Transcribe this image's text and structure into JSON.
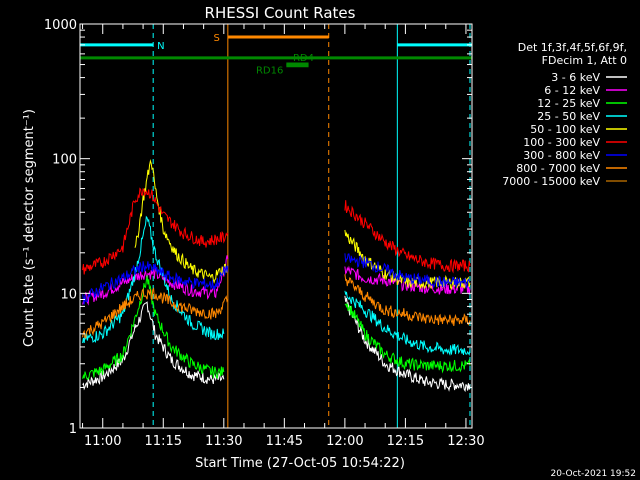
{
  "chart_data": {
    "type": "line",
    "title": "RHESSI Count Rates",
    "xlabel": "Start Time (27-Oct-05 10:54:22)",
    "ylabel": "Count Rate (s⁻¹ detector segment⁻¹)",
    "y_scale": "log",
    "ylim": [
      1,
      1000
    ],
    "xlim": [
      "10:54:22",
      "12:31:30"
    ],
    "x_ticks": [
      "11:00",
      "11:15",
      "11:30",
      "11:45",
      "12:00",
      "12:15",
      "12:30"
    ],
    "y_ticks": [
      "1",
      "10",
      "100",
      "1000"
    ],
    "grid": false,
    "legend_position": "right",
    "legend_header": [
      "Det 1f,3f,4f,5f,6f,9f,",
      "FDecim 1, Att 0"
    ],
    "series": [
      {
        "name": "3 - 6 keV",
        "color": "#ffffff",
        "points": [
          [
            "10:55",
            2.1
          ],
          [
            "11:00",
            2.4
          ],
          [
            "11:05",
            3.2
          ],
          [
            "11:08",
            5.5
          ],
          [
            "11:11",
            8.5
          ],
          [
            "11:13",
            5
          ],
          [
            "11:17",
            3.2
          ],
          [
            "11:22",
            2.5
          ],
          [
            "11:27",
            2.3
          ],
          [
            "11:30",
            2.3
          ],
          [
            "12:00",
            8.8
          ],
          [
            "12:05",
            4.5
          ],
          [
            "12:10",
            3
          ],
          [
            "12:15",
            2.5
          ],
          [
            "12:20",
            2.2
          ],
          [
            "12:25",
            2.1
          ],
          [
            "12:31",
            2.1
          ]
        ]
      },
      {
        "name": "6 - 12 keV",
        "color": "#ff00ff",
        "points": [
          [
            "10:55",
            9
          ],
          [
            "11:00",
            10
          ],
          [
            "11:05",
            12
          ],
          [
            "11:10",
            14
          ],
          [
            "11:13",
            14
          ],
          [
            "11:17",
            12
          ],
          [
            "11:22",
            10.5
          ],
          [
            "11:28",
            10
          ],
          [
            "11:31",
            18
          ],
          [
            "12:00",
            15
          ],
          [
            "12:05",
            13
          ],
          [
            "12:10",
            12.5
          ],
          [
            "12:15",
            11.5
          ],
          [
            "12:20",
            11
          ],
          [
            "12:25",
            10.8
          ],
          [
            "12:31",
            10.8
          ]
        ]
      },
      {
        "name": "12 - 25 keV",
        "color": "#00ff00",
        "points": [
          [
            "10:55",
            2.4
          ],
          [
            "11:00",
            2.7
          ],
          [
            "11:05",
            3.5
          ],
          [
            "11:08",
            6.5
          ],
          [
            "11:11",
            13
          ],
          [
            "11:13",
            7
          ],
          [
            "11:17",
            4
          ],
          [
            "11:22",
            3
          ],
          [
            "11:27",
            2.6
          ],
          [
            "11:30",
            2.6
          ],
          [
            "12:00",
            9
          ],
          [
            "12:05",
            5
          ],
          [
            "12:10",
            3.5
          ],
          [
            "12:15",
            3
          ],
          [
            "12:20",
            2.9
          ],
          [
            "12:25",
            2.9
          ],
          [
            "12:31",
            2.9
          ]
        ]
      },
      {
        "name": "25 - 50 keV",
        "color": "#00ffff",
        "points": [
          [
            "10:55",
            4.5
          ],
          [
            "11:00",
            5
          ],
          [
            "11:05",
            7
          ],
          [
            "11:08",
            14
          ],
          [
            "11:11",
            36
          ],
          [
            "11:13",
            20
          ],
          [
            "11:17",
            9
          ],
          [
            "11:22",
            6
          ],
          [
            "11:27",
            5
          ],
          [
            "11:30",
            5
          ],
          [
            "12:00",
            10
          ],
          [
            "12:05",
            7.5
          ],
          [
            "12:10",
            5.5
          ],
          [
            "12:15",
            4.5
          ],
          [
            "12:20",
            4
          ],
          [
            "12:25",
            3.8
          ],
          [
            "12:31",
            3.8
          ]
        ]
      },
      {
        "name": "50 - 100 keV",
        "color": "#ffff00",
        "points": [
          [
            "11:08",
            20
          ],
          [
            "11:10",
            50
          ],
          [
            "11:12",
            100
          ],
          [
            "11:13",
            60
          ],
          [
            "11:15",
            30
          ],
          [
            "11:18",
            20
          ],
          [
            "11:22",
            15
          ],
          [
            "11:27",
            13
          ],
          [
            "11:31",
            16
          ],
          [
            "12:00",
            28
          ],
          [
            "12:05",
            18
          ],
          [
            "12:10",
            14
          ],
          [
            "12:15",
            12
          ],
          [
            "12:20",
            12
          ],
          [
            "12:25",
            12
          ],
          [
            "12:31",
            12
          ]
        ]
      },
      {
        "name": "100 - 300 keV",
        "color": "#ff0000",
        "points": [
          [
            "10:55",
            15
          ],
          [
            "11:00",
            17
          ],
          [
            "11:05",
            22
          ],
          [
            "11:08",
            50
          ],
          [
            "11:10",
            60
          ],
          [
            "11:12",
            55
          ],
          [
            "11:15",
            38
          ],
          [
            "11:20",
            28
          ],
          [
            "11:25",
            24
          ],
          [
            "11:30",
            26
          ],
          [
            "11:31",
            28
          ],
          [
            "12:00",
            45
          ],
          [
            "12:05",
            33
          ],
          [
            "12:10",
            24
          ],
          [
            "12:15",
            19
          ],
          [
            "12:20",
            17
          ],
          [
            "12:25",
            16
          ],
          [
            "12:31",
            16
          ]
        ]
      },
      {
        "name": "300 - 800 keV",
        "color": "#0000ff",
        "points": [
          [
            "10:55",
            9
          ],
          [
            "11:00",
            11
          ],
          [
            "11:05",
            13
          ],
          [
            "11:10",
            16
          ],
          [
            "11:13",
            15
          ],
          [
            "11:17",
            13
          ],
          [
            "11:22",
            12
          ],
          [
            "11:28",
            11.5
          ],
          [
            "11:31",
            16
          ],
          [
            "12:00",
            18
          ],
          [
            "12:05",
            17
          ],
          [
            "12:10",
            15
          ],
          [
            "12:15",
            13
          ],
          [
            "12:20",
            12.5
          ],
          [
            "12:25",
            12
          ],
          [
            "12:31",
            12
          ]
        ]
      },
      {
        "name": "800 - 7000 keV",
        "color": "#ff8800",
        "points": [
          [
            "10:55",
            5
          ],
          [
            "11:00",
            6
          ],
          [
            "11:05",
            8
          ],
          [
            "11:10",
            10
          ],
          [
            "11:13",
            10
          ],
          [
            "11:17",
            8.5
          ],
          [
            "11:22",
            7.5
          ],
          [
            "11:28",
            7
          ],
          [
            "11:31",
            9
          ],
          [
            "12:00",
            13
          ],
          [
            "12:05",
            9.5
          ],
          [
            "12:10",
            7.5
          ],
          [
            "12:15",
            7
          ],
          [
            "12:20",
            6.5
          ],
          [
            "12:25",
            6.3
          ],
          [
            "12:31",
            6.3
          ]
        ]
      },
      {
        "name": "7000 - 15000 keV",
        "color": "#aa6600",
        "points": []
      }
    ],
    "attenuator_bars": [
      {
        "label": "N",
        "color": "#00ffff",
        "start": "10:54:22",
        "end": "11:12:30",
        "level": 700
      },
      {
        "label": "",
        "color": "#00ffff",
        "start": "12:13:00",
        "end": "12:31:30",
        "level": 700
      },
      {
        "label": "S",
        "color": "#ff8800",
        "start": "11:31:00",
        "end": "11:56:00",
        "level": 800
      },
      {
        "label": "",
        "color": "#008800",
        "start": "10:54:22",
        "end": "12:31:30",
        "level": 560
      },
      {
        "label": "RD4",
        "color": "#008800",
        "start": "11:45:30",
        "end": "11:51:00",
        "level": 505
      },
      {
        "label": "RD16",
        "color": "#008800",
        "start": "11:45:30",
        "end": "11:51:00",
        "level": 490
      }
    ],
    "vertical_lines": [
      {
        "time": "10:54:22",
        "color": "#00ffff",
        "style": "solid"
      },
      {
        "time": "11:12:30",
        "color": "#00ffff",
        "style": "dashed"
      },
      {
        "time": "11:31:00",
        "color": "#ff8800",
        "style": "solid"
      },
      {
        "time": "11:56:00",
        "color": "#ff8800",
        "style": "dashed"
      },
      {
        "time": "12:13:00",
        "color": "#00ffff",
        "style": "solid"
      },
      {
        "time": "12:31:00",
        "color": "#00ffff",
        "style": "dashed"
      }
    ]
  },
  "footer": {
    "timestamp": "20-Oct-2021 19:52"
  }
}
